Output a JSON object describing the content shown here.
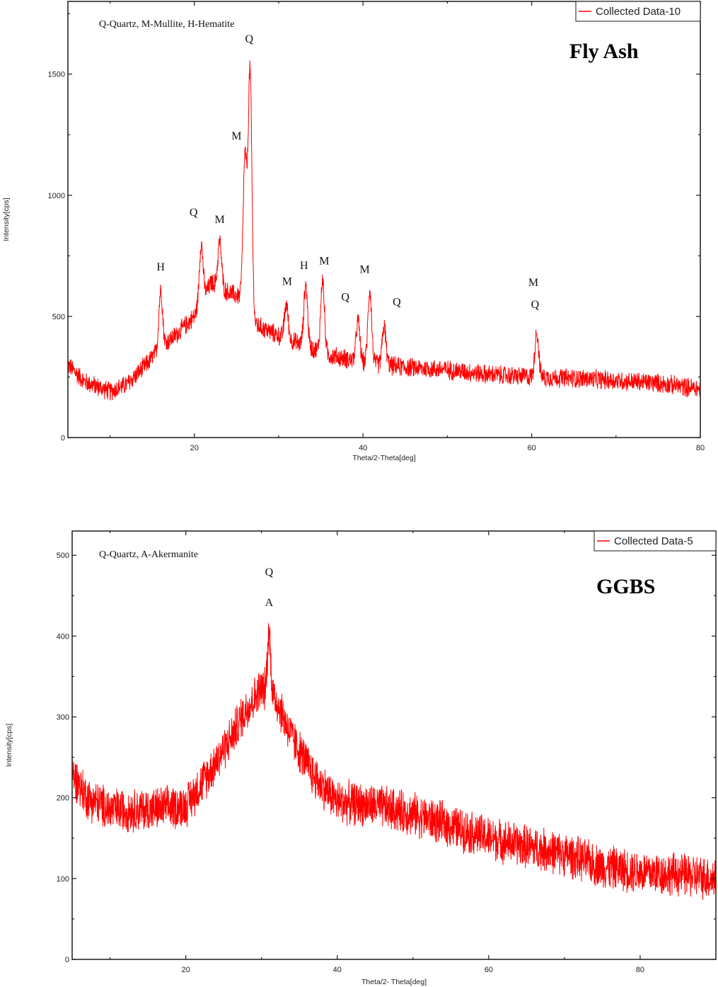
{
  "charts": [
    {
      "id": "fly-ash",
      "panel_title": "Fly Ash",
      "phase_key": "Q-Quartz, M-Mullite, H-Hematite",
      "legend": "Collected Data-10",
      "xlabel": "Theta/2-Theta[deg]",
      "ylabel": "Intensity[cps]",
      "xticks": [
        "20",
        "40",
        "60",
        "80"
      ],
      "yticks": [
        "0",
        "500",
        "1000",
        "1500"
      ]
    },
    {
      "id": "ggbs",
      "panel_title": "GGBS",
      "phase_key": "Q-Quartz, A-Akermanite",
      "legend": "Collected Data-5",
      "xlabel": "Theta/2- Theta[deg]",
      "ylabel": "Intensity[cps]",
      "xticks": [
        "20",
        "40",
        "60",
        "80"
      ],
      "yticks": [
        "0",
        "100",
        "200",
        "300",
        "400",
        "500"
      ]
    }
  ],
  "chart_data": [
    {
      "type": "line",
      "title": "Fly Ash",
      "subtitle": "Q-Quartz, M-Mullite, H-Hematite",
      "xlabel": "Theta/2-Theta[deg]",
      "ylabel": "Intensity[cps]",
      "xlim": [
        5,
        80
      ],
      "ylim": [
        0,
        1800
      ],
      "xticks": [
        20,
        40,
        60,
        80
      ],
      "yticks": [
        0,
        500,
        1000,
        1500
      ],
      "grid": false,
      "legend": {
        "position": "top-right",
        "entries": [
          "Collected Data-10"
        ]
      },
      "color": "#ff0000",
      "series": [
        {
          "name": "Collected Data-10",
          "baseline": {
            "x": [
              5,
              7,
              10,
              12,
              14,
              16,
              18,
              20,
              22,
              24,
              25.5,
              27,
              30,
              33,
              36,
              40,
              45,
              50,
              55,
              60,
              65,
              70,
              75,
              80
            ],
            "y": [
              300,
              230,
              190,
              220,
              290,
              370,
              430,
              500,
              640,
              600,
              580,
              470,
              420,
              380,
              340,
              310,
              290,
              280,
              260,
              250,
              245,
              235,
              225,
              200
            ]
          },
          "noise_amplitude": 45,
          "peaks": [
            {
              "x": 16.0,
              "y": 610,
              "label": "H"
            },
            {
              "x": 20.8,
              "y": 800,
              "label": "Q"
            },
            {
              "x": 23.0,
              "y": 810,
              "label": "M"
            },
            {
              "x": 26.0,
              "y": 1150,
              "label": "M"
            },
            {
              "x": 26.6,
              "y": 1510,
              "label": "Q"
            },
            {
              "x": 30.9,
              "y": 550,
              "label": "M"
            },
            {
              "x": 33.2,
              "y": 630,
              "label": "H"
            },
            {
              "x": 35.2,
              "y": 650,
              "label": "M"
            },
            {
              "x": 39.4,
              "y": 480,
              "label": "Q"
            },
            {
              "x": 40.8,
              "y": 610,
              "label": "M"
            },
            {
              "x": 42.5,
              "y": 460,
              "label": "Q"
            },
            {
              "x": 60.6,
              "y": 440,
              "label": "M/Q"
            }
          ]
        }
      ],
      "annotations": [
        {
          "text": "Q",
          "x": 26.5,
          "y": 1630
        },
        {
          "text": "M",
          "x": 25.0,
          "y": 1230
        },
        {
          "text": "Q",
          "x": 19.9,
          "y": 915
        },
        {
          "text": "M",
          "x": 23.0,
          "y": 885
        },
        {
          "text": "H",
          "x": 16.0,
          "y": 690
        },
        {
          "text": "M",
          "x": 31.0,
          "y": 630
        },
        {
          "text": "H",
          "x": 33.0,
          "y": 695
        },
        {
          "text": "M",
          "x": 35.4,
          "y": 715
        },
        {
          "text": "Q",
          "x": 37.9,
          "y": 565
        },
        {
          "text": "M",
          "x": 40.2,
          "y": 680
        },
        {
          "text": "Q",
          "x": 44.0,
          "y": 545
        },
        {
          "text": "M",
          "x": 60.2,
          "y": 625
        },
        {
          "text": "Q",
          "x": 60.4,
          "y": 535
        }
      ]
    },
    {
      "type": "line",
      "title": "GGBS",
      "subtitle": "Q-Quartz, A-Akermanite",
      "xlabel": "Theta/2- Theta[deg]",
      "ylabel": "Intensity[cps]",
      "xlim": [
        5,
        90
      ],
      "ylim": [
        0,
        530
      ],
      "xticks": [
        20,
        40,
        60,
        80
      ],
      "yticks": [
        0,
        100,
        200,
        300,
        400,
        500
      ],
      "grid": false,
      "legend": {
        "position": "top-right",
        "entries": [
          "Collected Data-5"
        ]
      },
      "color": "#ff0000",
      "series": [
        {
          "name": "Collected Data-5",
          "baseline": {
            "x": [
              5,
              7,
              10,
              15,
              20,
              23,
              26,
              28,
              30,
              32,
              34,
              37,
              40,
              45,
              50,
              55,
              60,
              65,
              70,
              75,
              80,
              85,
              90
            ],
            "y": [
              230,
              200,
              185,
              185,
              190,
              230,
              275,
              310,
              335,
              320,
              275,
              225,
              195,
              190,
              180,
              165,
              150,
              140,
              130,
              115,
              108,
              105,
              100
            ]
          },
          "noise_amplitude": 30,
          "peaks": [
            {
              "x": 31.0,
              "y": 405,
              "label": "Q/A"
            }
          ]
        }
      ],
      "annotations": [
        {
          "text": "Q",
          "x": 31.0,
          "y": 475
        },
        {
          "text": "A",
          "x": 31.0,
          "y": 437
        }
      ]
    }
  ]
}
